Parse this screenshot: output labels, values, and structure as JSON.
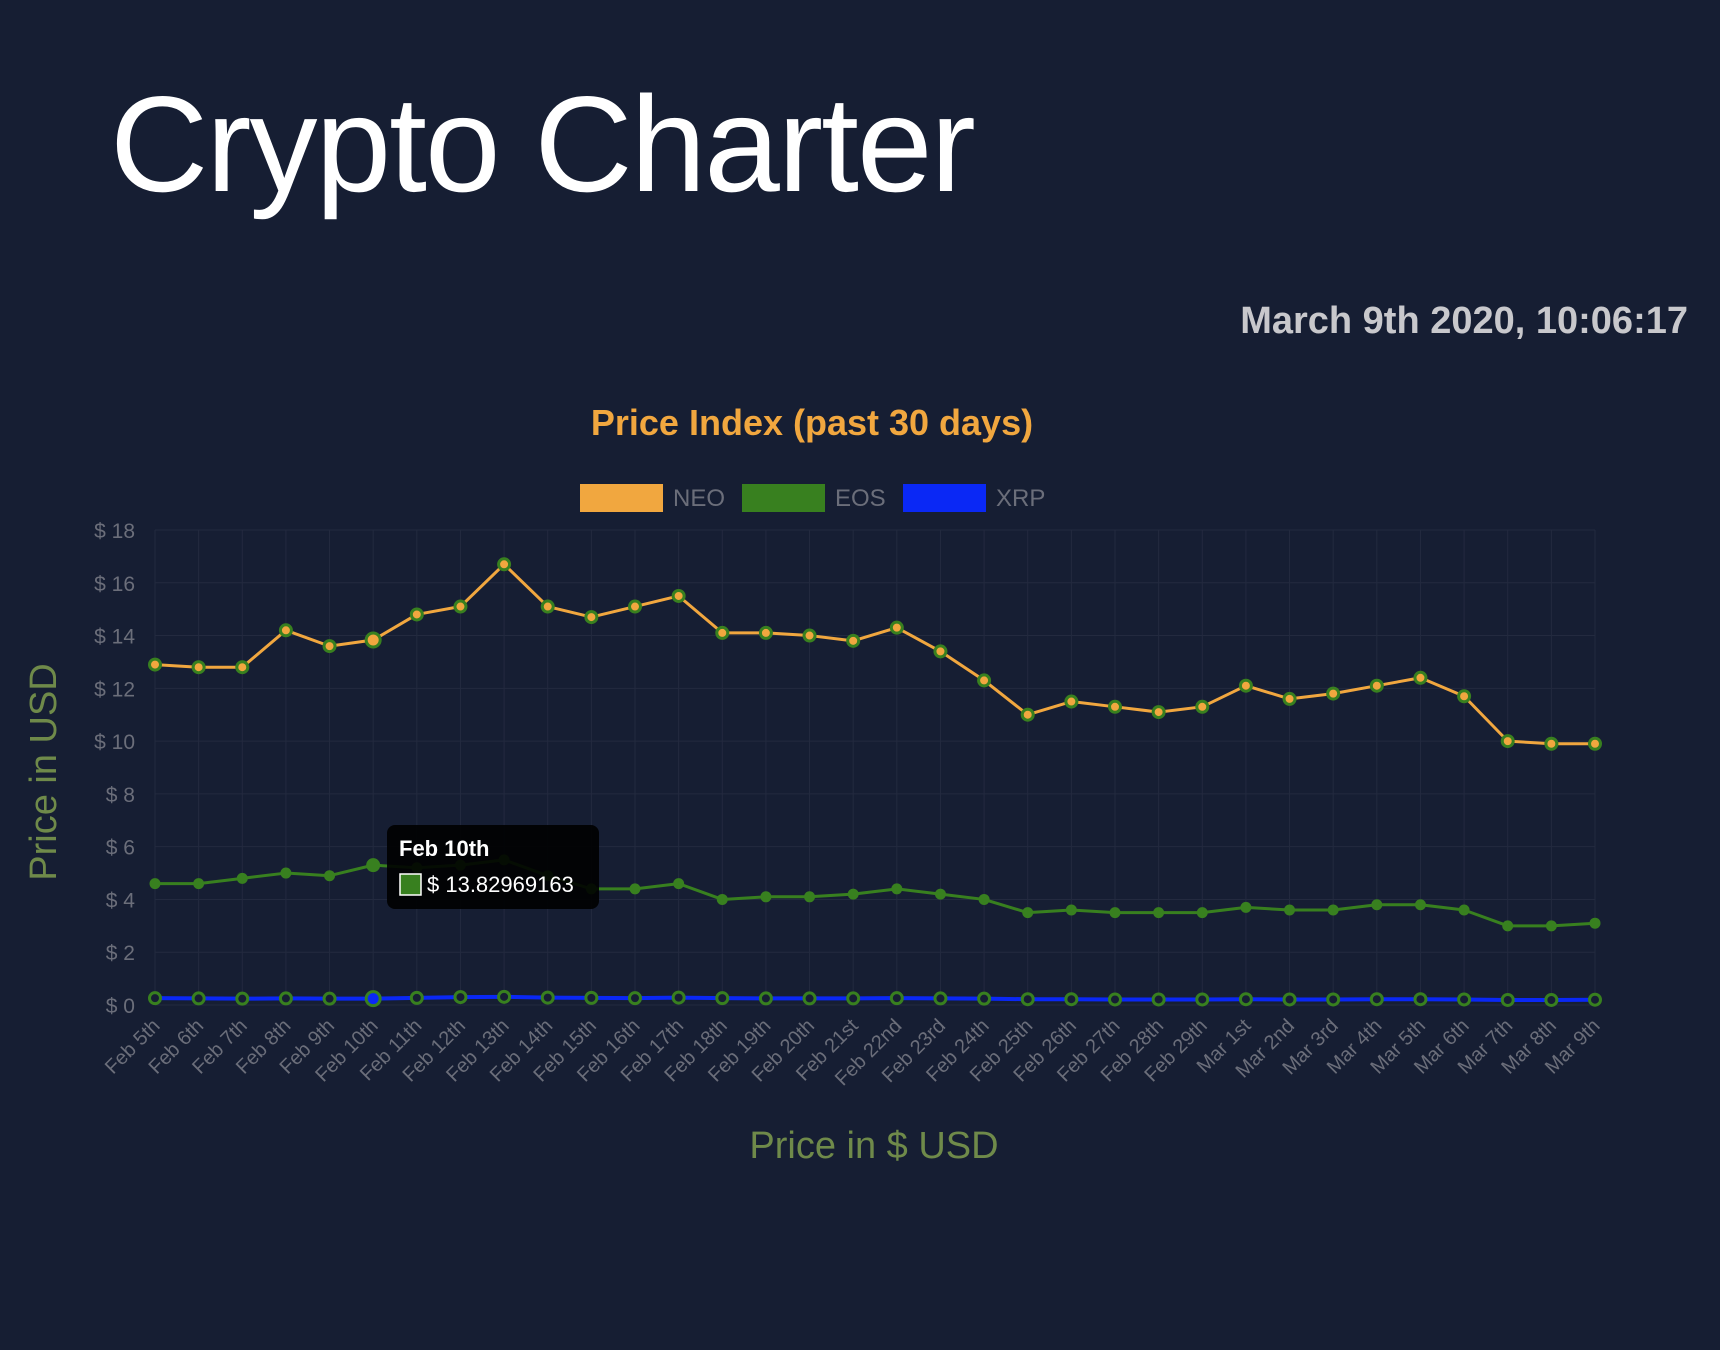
{
  "app": {
    "title": "Crypto Charter",
    "timestamp": "March 9th 2020, 10:06:17"
  },
  "colors": {
    "background": "#161e33",
    "grid": "#232a3f",
    "axis_label": "#6f8a4a",
    "tick_label": "#6b6e7a",
    "title": "#f1a73f",
    "neo": "#f1a73f",
    "eos": "#38801f",
    "xrp": "#0a28f5",
    "tooltip_bg": "#000000"
  },
  "chart_data": {
    "type": "line",
    "title": "Price Index (past 30 days)",
    "xlabel": "Price in $ USD",
    "ylabel": "Price in USD",
    "ylim": [
      0,
      18
    ],
    "yticks": [
      0,
      2,
      4,
      6,
      8,
      10,
      12,
      14,
      16,
      18
    ],
    "ytick_prefix": "$ ",
    "grid": true,
    "legend_position": "top",
    "categories": [
      "Feb 5th",
      "Feb 6th",
      "Feb 7th",
      "Feb 8th",
      "Feb 9th",
      "Feb 10th",
      "Feb 11th",
      "Feb 12th",
      "Feb 13th",
      "Feb 14th",
      "Feb 15th",
      "Feb 16th",
      "Feb 17th",
      "Feb 18th",
      "Feb 19th",
      "Feb 20th",
      "Feb 21st",
      "Feb 22nd",
      "Feb 23rd",
      "Feb 24th",
      "Feb 25th",
      "Feb 26th",
      "Feb 27th",
      "Feb 28th",
      "Feb 29th",
      "Mar 1st",
      "Mar 2nd",
      "Mar 3rd",
      "Mar 4th",
      "Mar 5th",
      "Mar 6th",
      "Mar 7th",
      "Mar 8th",
      "Mar 9th"
    ],
    "series": [
      {
        "name": "NEO",
        "color": "#f1a73f",
        "values": [
          12.9,
          12.8,
          12.8,
          14.2,
          13.6,
          13.83,
          14.8,
          15.1,
          16.7,
          15.1,
          14.7,
          15.1,
          15.5,
          14.1,
          14.1,
          14.0,
          13.8,
          14.3,
          13.4,
          12.3,
          11.0,
          11.5,
          11.3,
          11.1,
          11.3,
          12.1,
          11.6,
          11.8,
          12.1,
          12.4,
          11.7,
          10.0,
          9.9,
          9.9
        ]
      },
      {
        "name": "EOS",
        "color": "#38801f",
        "values": [
          4.6,
          4.6,
          4.8,
          5.0,
          4.9,
          5.3,
          5.2,
          5.3,
          5.5,
          4.9,
          4.4,
          4.4,
          4.6,
          4.0,
          4.1,
          4.1,
          4.2,
          4.4,
          4.2,
          4.0,
          3.5,
          3.6,
          3.5,
          3.5,
          3.5,
          3.7,
          3.6,
          3.6,
          3.8,
          3.8,
          3.6,
          3.0,
          3.0,
          3.1
        ]
      },
      {
        "name": "XRP",
        "color": "#0a28f5",
        "values": [
          0.26,
          0.25,
          0.24,
          0.25,
          0.24,
          0.24,
          0.27,
          0.3,
          0.31,
          0.28,
          0.27,
          0.26,
          0.28,
          0.26,
          0.25,
          0.25,
          0.25,
          0.26,
          0.25,
          0.24,
          0.22,
          0.22,
          0.21,
          0.21,
          0.21,
          0.22,
          0.21,
          0.21,
          0.22,
          0.22,
          0.21,
          0.19,
          0.19,
          0.2
        ]
      }
    ],
    "tooltip": {
      "title": "Feb 10th",
      "value_text": "$ 13.82969163",
      "category_index": 5
    }
  }
}
